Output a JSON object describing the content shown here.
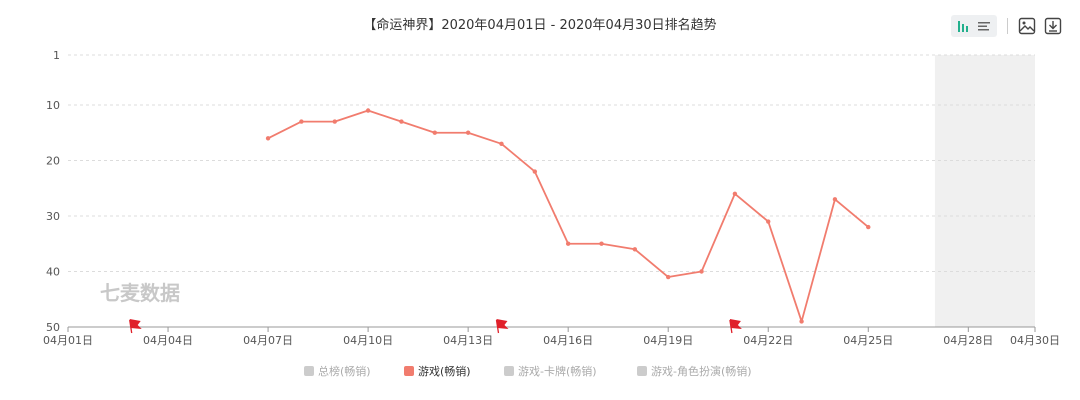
{
  "chart_data": {
    "type": "line",
    "title": "【命运神界】2020年04月01日 - 2020年04月30日排名趋势",
    "x_ticks": [
      "04月01日",
      "04月04日",
      "04月07日",
      "04月10日",
      "04月13日",
      "04月16日",
      "04月19日",
      "04月22日",
      "04月25日",
      "04月28日",
      "04月30日"
    ],
    "x_range": [
      "04月01日",
      "04月30日"
    ],
    "y_ticks": [
      1,
      10,
      20,
      30,
      40,
      50
    ],
    "ylim": [
      1,
      50
    ],
    "y_inverted": true,
    "grid": true,
    "legend_position": "bottom",
    "watermark": "七麦数据",
    "shaded_range": [
      "04月27日",
      "04月30日"
    ],
    "flag_dates": [
      "04月03日",
      "04月14日",
      "04月21日"
    ],
    "series": [
      {
        "name": "游戏(畅销)",
        "color": "#f17c6e",
        "active": true,
        "x": [
          "04月07日",
          "04月08日",
          "04月09日",
          "04月10日",
          "04月11日",
          "04月12日",
          "04月13日",
          "04月14日",
          "04月15日",
          "04月16日",
          "04月17日",
          "04月18日",
          "04月19日",
          "04月20日",
          "04月21日",
          "04月22日",
          "04月23日",
          "04月24日",
          "04月25日"
        ],
        "values": [
          16,
          13,
          13,
          11,
          13,
          15,
          15,
          17,
          22,
          35,
          35,
          36,
          41,
          40,
          26,
          31,
          49,
          27,
          32
        ]
      }
    ]
  },
  "legend": [
    {
      "label": "总榜(畅销)",
      "color": "#cccccc",
      "text_color": "#aaaaaa"
    },
    {
      "label": "游戏(畅销)",
      "color": "#f17c6e",
      "text_color": "#333333"
    },
    {
      "label": "游戏-卡牌(畅销)",
      "color": "#cccccc",
      "text_color": "#aaaaaa"
    },
    {
      "label": "游戏-角色扮演(畅销)",
      "color": "#cccccc",
      "text_color": "#aaaaaa"
    }
  ],
  "toolbar": {
    "icons": [
      "bar-chart-icon",
      "list-icon",
      "image-icon",
      "download-icon"
    ],
    "accent": "#22b08d"
  }
}
